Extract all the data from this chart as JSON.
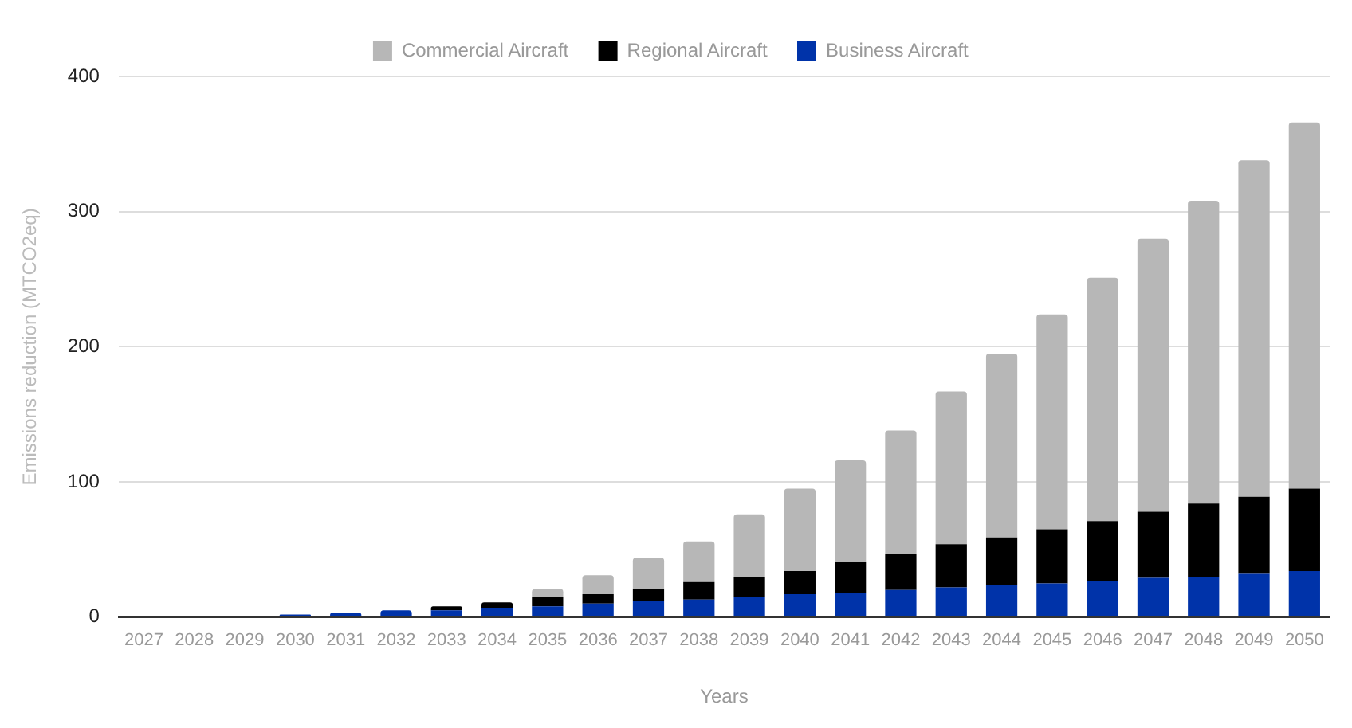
{
  "chart_data": {
    "type": "bar",
    "stacked": true,
    "xlabel": "Years",
    "ylabel": "Emissions reduction (MTCO2eq)",
    "categories": [
      "2027",
      "2028",
      "2029",
      "2030",
      "2031",
      "2032",
      "2033",
      "2034",
      "2035",
      "2036",
      "2037",
      "2038",
      "2039",
      "2040",
      "2041",
      "2042",
      "2043",
      "2044",
      "2045",
      "2046",
      "2047",
      "2048",
      "2049",
      "2050"
    ],
    "series": [
      {
        "name": "Business Aircraft",
        "color": "#0033a9",
        "values": [
          0,
          1,
          1,
          2,
          3,
          5,
          5,
          7,
          8,
          10,
          12,
          13,
          15,
          17,
          18,
          20,
          22,
          24,
          25,
          27,
          29,
          30,
          32,
          34
        ]
      },
      {
        "name": "Regional Aircraft",
        "color": "#000000",
        "values": [
          0,
          0,
          0,
          0,
          0,
          0,
          3,
          4,
          7,
          7,
          9,
          13,
          15,
          17,
          23,
          27,
          32,
          35,
          40,
          44,
          49,
          54,
          57,
          61
        ]
      },
      {
        "name": "Commercial Aircraft",
        "color": "#b7b7b7",
        "values": [
          0,
          0,
          0,
          0,
          0,
          0,
          0,
          0,
          6,
          14,
          23,
          30,
          46,
          61,
          75,
          91,
          113,
          136,
          159,
          180,
          202,
          224,
          249,
          271
        ]
      }
    ],
    "ylim": [
      0,
      400
    ],
    "yticks": [
      0,
      100,
      200,
      300,
      400
    ],
    "grid": "y",
    "legend": "top"
  }
}
